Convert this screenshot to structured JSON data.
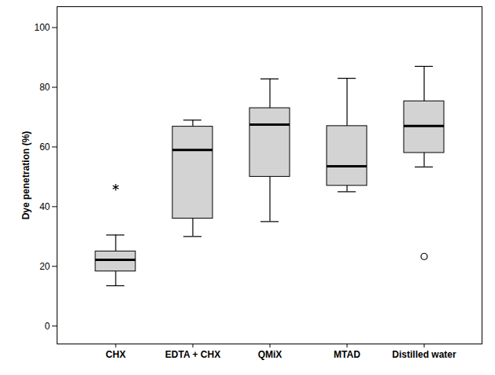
{
  "chart_data": {
    "type": "box",
    "y_label": "Dye penetration (%)",
    "categories": [
      "CHX",
      "EDTA + CHX",
      "QMiX",
      "MTAD",
      "Distilled water"
    ],
    "min": [
      13.5,
      30,
      35,
      45,
      53.3
    ],
    "q1": [
      18.3,
      36,
      50,
      47,
      58
    ],
    "median": [
      22.2,
      59,
      67.5,
      53.5,
      67
    ],
    "q3": [
      25,
      66.8,
      73,
      67,
      75.3
    ],
    "max": [
      30.5,
      69,
      82.8,
      83,
      87
    ],
    "outliers": [
      {
        "category": "CHX",
        "value": 46.5,
        "marker": "asterisk"
      },
      {
        "category": "Distilled water",
        "value": 23.3,
        "marker": "circle"
      }
    ],
    "color": "#d3d3d3",
    "ylim": [
      -6,
      107
    ],
    "yticks": [
      0,
      20,
      40,
      60,
      80,
      100
    ],
    "grid": false
  }
}
